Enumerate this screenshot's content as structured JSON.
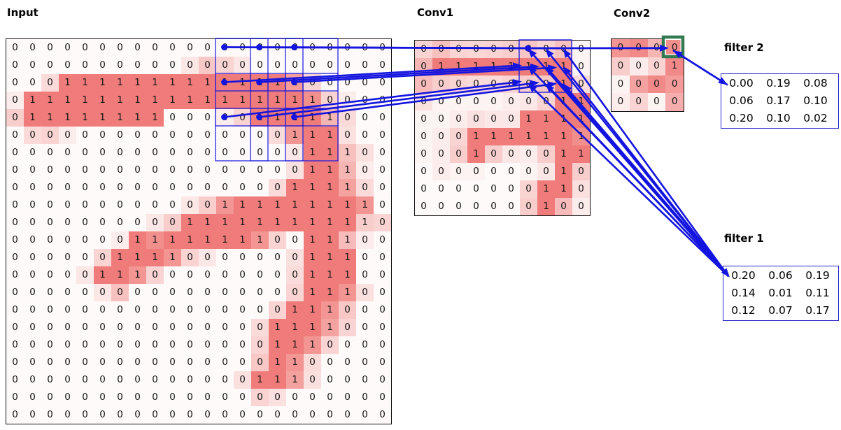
{
  "titles": {
    "input": "Input",
    "conv1": "Conv1",
    "conv2": "Conv2",
    "filter1": "filter 1",
    "filter2": "filter 2"
  },
  "colors": {
    "line_blue": "#1414e0",
    "heat_low": "#fdfaf9",
    "heat_high": "#ee7a78",
    "green_target_box": "#337a52",
    "grid_border": "#111111",
    "filter_border": "#2626cc",
    "digit": "#151515"
  },
  "input_grid": {
    "rows": 22,
    "cols": 22,
    "labels": [
      [
        0,
        0,
        0,
        0,
        0,
        0,
        0,
        0,
        0,
        0,
        0,
        0,
        0,
        0,
        0,
        0,
        0,
        0,
        0,
        0,
        0,
        0
      ],
      [
        0,
        0,
        0,
        0,
        0,
        0,
        0,
        0,
        0,
        0,
        0,
        0,
        0,
        0,
        0,
        0,
        0,
        0,
        0,
        0,
        0,
        0
      ],
      [
        0,
        0,
        0,
        1,
        1,
        1,
        1,
        1,
        1,
        1,
        1,
        1,
        1,
        1,
        1,
        1,
        1,
        0,
        0,
        0,
        0,
        0
      ],
      [
        0,
        1,
        1,
        1,
        1,
        1,
        1,
        1,
        1,
        1,
        1,
        1,
        1,
        1,
        1,
        1,
        1,
        1,
        0,
        0,
        0,
        0
      ],
      [
        0,
        1,
        1,
        1,
        1,
        1,
        1,
        1,
        1,
        0,
        0,
        0,
        0,
        0,
        1,
        1,
        1,
        1,
        1,
        0,
        0,
        0
      ],
      [
        0,
        0,
        0,
        0,
        0,
        0,
        0,
        0,
        0,
        0,
        0,
        0,
        0,
        0,
        0,
        0,
        1,
        1,
        1,
        0,
        0,
        0
      ],
      [
        0,
        0,
        0,
        0,
        0,
        0,
        0,
        0,
        0,
        0,
        0,
        0,
        0,
        0,
        0,
        0,
        0,
        1,
        1,
        1,
        0,
        0
      ],
      [
        0,
        0,
        0,
        0,
        0,
        0,
        0,
        0,
        0,
        0,
        0,
        0,
        0,
        0,
        0,
        0,
        0,
        1,
        1,
        1,
        0,
        0
      ],
      [
        0,
        0,
        0,
        0,
        0,
        0,
        0,
        0,
        0,
        0,
        0,
        0,
        0,
        0,
        0,
        0,
        1,
        1,
        1,
        1,
        0,
        0
      ],
      [
        0,
        0,
        0,
        0,
        0,
        0,
        0,
        0,
        0,
        0,
        0,
        0,
        1,
        1,
        1,
        1,
        1,
        1,
        1,
        1,
        1,
        0
      ],
      [
        0,
        0,
        0,
        0,
        0,
        0,
        0,
        0,
        0,
        0,
        1,
        1,
        1,
        1,
        1,
        1,
        1,
        1,
        1,
        1,
        1,
        0
      ],
      [
        0,
        0,
        0,
        0,
        0,
        0,
        0,
        1,
        1,
        1,
        1,
        1,
        1,
        1,
        1,
        0,
        0,
        1,
        1,
        1,
        0,
        0
      ],
      [
        0,
        0,
        0,
        0,
        0,
        0,
        1,
        1,
        1,
        1,
        0,
        0,
        0,
        0,
        0,
        0,
        0,
        1,
        1,
        1,
        0,
        0
      ],
      [
        0,
        0,
        0,
        0,
        0,
        1,
        1,
        1,
        0,
        0,
        0,
        0,
        0,
        0,
        0,
        0,
        0,
        1,
        1,
        1,
        0,
        0
      ],
      [
        0,
        0,
        0,
        0,
        0,
        0,
        0,
        0,
        0,
        0,
        0,
        0,
        0,
        0,
        0,
        0,
        0,
        1,
        1,
        1,
        0,
        0
      ],
      [
        0,
        0,
        0,
        0,
        0,
        0,
        0,
        0,
        0,
        0,
        0,
        0,
        0,
        0,
        0,
        0,
        1,
        1,
        1,
        0,
        0,
        0
      ],
      [
        0,
        0,
        0,
        0,
        0,
        0,
        0,
        0,
        0,
        0,
        0,
        0,
        0,
        0,
        0,
        1,
        1,
        1,
        1,
        0,
        0,
        0
      ],
      [
        0,
        0,
        0,
        0,
        0,
        0,
        0,
        0,
        0,
        0,
        0,
        0,
        0,
        0,
        0,
        1,
        1,
        1,
        0,
        0,
        0,
        0
      ],
      [
        0,
        0,
        0,
        0,
        0,
        0,
        0,
        0,
        0,
        0,
        0,
        0,
        0,
        0,
        0,
        1,
        1,
        0,
        0,
        0,
        0,
        0
      ],
      [
        0,
        0,
        0,
        0,
        0,
        0,
        0,
        0,
        0,
        0,
        0,
        0,
        0,
        0,
        1,
        1,
        1,
        0,
        0,
        0,
        0,
        0
      ],
      [
        0,
        0,
        0,
        0,
        0,
        0,
        0,
        0,
        0,
        0,
        0,
        0,
        0,
        0,
        0,
        0,
        0,
        0,
        0,
        0,
        0,
        0
      ],
      [
        0,
        0,
        0,
        0,
        0,
        0,
        0,
        0,
        0,
        0,
        0,
        0,
        0,
        0,
        0,
        0,
        0,
        0,
        0,
        0,
        0,
        0
      ]
    ],
    "shade_overrides": [
      [
        1,
        10,
        0.15
      ],
      [
        1,
        11,
        0.4
      ],
      [
        1,
        12,
        0.3
      ],
      [
        1,
        13,
        0.15
      ],
      [
        2,
        2,
        0.25
      ],
      [
        2,
        16,
        0.75
      ],
      [
        2,
        17,
        0.3
      ],
      [
        3,
        0,
        0.1
      ],
      [
        3,
        17,
        0.85
      ],
      [
        3,
        18,
        0.3
      ],
      [
        3,
        19,
        0.1
      ],
      [
        4,
        0,
        0.35
      ],
      [
        4,
        12,
        0.1
      ],
      [
        4,
        13,
        0.3
      ],
      [
        4,
        18,
        0.55
      ],
      [
        4,
        19,
        0.25
      ],
      [
        5,
        1,
        0.25
      ],
      [
        5,
        2,
        0.3
      ],
      [
        5,
        3,
        0.1
      ],
      [
        5,
        15,
        0.25
      ],
      [
        5,
        16,
        0.8
      ],
      [
        5,
        19,
        0.2
      ],
      [
        6,
        16,
        0.15
      ],
      [
        6,
        19,
        0.45
      ],
      [
        6,
        20,
        0.2
      ],
      [
        7,
        16,
        0.2
      ],
      [
        7,
        19,
        0.55
      ],
      [
        7,
        20,
        0.1
      ],
      [
        8,
        15,
        0.25
      ],
      [
        8,
        19,
        0.7
      ],
      [
        8,
        20,
        0.25
      ],
      [
        9,
        10,
        0.15
      ],
      [
        9,
        11,
        0.35
      ],
      [
        9,
        12,
        0.8
      ],
      [
        9,
        20,
        0.8
      ],
      [
        10,
        8,
        0.15
      ],
      [
        10,
        9,
        0.35
      ],
      [
        10,
        20,
        0.35
      ],
      [
        10,
        21,
        0.3
      ],
      [
        11,
        6,
        0.1
      ],
      [
        11,
        8,
        0.85
      ],
      [
        11,
        14,
        0.8
      ],
      [
        11,
        15,
        0.3
      ],
      [
        11,
        19,
        0.5
      ],
      [
        11,
        20,
        0.1
      ],
      [
        12,
        5,
        0.3
      ],
      [
        12,
        9,
        0.8
      ],
      [
        12,
        10,
        0.3
      ],
      [
        12,
        11,
        0.15
      ],
      [
        12,
        16,
        0.2
      ],
      [
        13,
        4,
        0.15
      ],
      [
        13,
        7,
        0.8
      ],
      [
        13,
        8,
        0.3
      ],
      [
        13,
        16,
        0.25
      ],
      [
        14,
        5,
        0.15
      ],
      [
        14,
        6,
        0.45
      ],
      [
        14,
        16,
        0.3
      ],
      [
        14,
        19,
        0.8
      ],
      [
        14,
        20,
        0.2
      ],
      [
        15,
        15,
        0.3
      ],
      [
        15,
        18,
        0.8
      ],
      [
        15,
        19,
        0.4
      ],
      [
        16,
        14,
        0.25
      ],
      [
        16,
        18,
        0.7
      ],
      [
        16,
        19,
        0.3
      ],
      [
        17,
        14,
        0.3
      ],
      [
        17,
        17,
        0.8
      ],
      [
        17,
        18,
        0.3
      ],
      [
        18,
        14,
        0.4
      ],
      [
        18,
        16,
        0.8
      ],
      [
        18,
        17,
        0.25
      ],
      [
        19,
        13,
        0.2
      ],
      [
        19,
        16,
        0.7
      ],
      [
        19,
        17,
        0.2
      ],
      [
        20,
        14,
        0.3
      ],
      [
        20,
        15,
        0.2
      ]
    ]
  },
  "conv1_grid": {
    "rows": 10,
    "cols": 10,
    "labels": [
      [
        0,
        0,
        0,
        0,
        0,
        0,
        0,
        0,
        0,
        0
      ],
      [
        0,
        1,
        1,
        1,
        1,
        1,
        1,
        1,
        1,
        0
      ],
      [
        0,
        0,
        0,
        0,
        0,
        0,
        0,
        0,
        1,
        0
      ],
      [
        0,
        0,
        0,
        0,
        0,
        0,
        0,
        0,
        1,
        1
      ],
      [
        0,
        0,
        0,
        0,
        0,
        0,
        1,
        1,
        1,
        1
      ],
      [
        0,
        0,
        0,
        1,
        1,
        1,
        1,
        1,
        1,
        1
      ],
      [
        0,
        0,
        0,
        1,
        0,
        0,
        0,
        0,
        1,
        1
      ],
      [
        0,
        0,
        0,
        0,
        0,
        0,
        0,
        0,
        1,
        0
      ],
      [
        0,
        0,
        0,
        0,
        0,
        0,
        0,
        1,
        1,
        0
      ],
      [
        0,
        0,
        0,
        0,
        0,
        0,
        0,
        1,
        0,
        0
      ]
    ],
    "shades": [
      [
        0.3,
        0.45,
        0.3,
        0.28,
        0.3,
        0.35,
        0.42,
        0.3,
        0.45,
        0.05
      ],
      [
        0.55,
        1,
        1,
        1,
        1,
        1,
        1,
        1,
        1,
        0.05
      ],
      [
        0.5,
        0.35,
        0.3,
        0.25,
        0.25,
        0.3,
        0.35,
        0.4,
        1,
        0.25
      ],
      [
        0.2,
        0.05,
        0.05,
        0.05,
        0.05,
        0.1,
        0.15,
        0.3,
        1,
        1
      ],
      [
        0.05,
        0.05,
        0.1,
        0.2,
        0.15,
        0.15,
        1,
        1,
        1,
        1
      ],
      [
        0.05,
        0.1,
        0.3,
        1,
        1,
        1,
        1,
        1,
        1,
        0.85
      ],
      [
        0.05,
        0.1,
        0.35,
        1,
        0.35,
        0.15,
        0.1,
        0.35,
        1,
        1
      ],
      [
        0,
        0.1,
        0.05,
        0.05,
        0,
        0,
        0.05,
        0.15,
        1,
        0.35
      ],
      [
        0,
        0,
        0,
        0,
        0,
        0,
        0.3,
        1,
        1,
        0.2
      ],
      [
        0,
        0,
        0,
        0,
        0,
        0,
        0.35,
        1,
        0.5,
        0.1
      ]
    ]
  },
  "conv2_grid": {
    "rows": 4,
    "cols": 4,
    "labels": [
      [
        0,
        0,
        0,
        0
      ],
      [
        0,
        0,
        0,
        1
      ],
      [
        0,
        0,
        0,
        0
      ],
      [
        0,
        0,
        0,
        0
      ]
    ],
    "shades": [
      [
        0.8,
        0.9,
        0.55,
        0.85
      ],
      [
        0.35,
        0.12,
        0.3,
        0.9
      ],
      [
        0.05,
        0.7,
        0.9,
        0.75
      ],
      [
        0.1,
        0.3,
        0.05,
        0.6
      ]
    ]
  },
  "filters": {
    "filter1": {
      "title": "filter 1",
      "values": [
        [
          "0.20",
          "0.06",
          "0.19"
        ],
        [
          "0.14",
          "0.01",
          "0.11"
        ],
        [
          "0.12",
          "0.07",
          "0.17"
        ]
      ]
    },
    "filter2": {
      "title": "filter 2",
      "values": [
        [
          "0.00",
          "0.19",
          "0.08"
        ],
        [
          "0.06",
          "0.17",
          "0.10"
        ],
        [
          "0.20",
          "0.10",
          "0.02"
        ]
      ]
    }
  },
  "annotations": {
    "input_patch_rows": [
      0,
      2,
      4
    ],
    "input_patch_cols": [
      12,
      14,
      16
    ],
    "patch_size": 3,
    "conv1_patch": {
      "row0": 0,
      "col0": 6,
      "size": 3
    },
    "conv2_target_cell": {
      "row": 0,
      "col": 3
    }
  }
}
